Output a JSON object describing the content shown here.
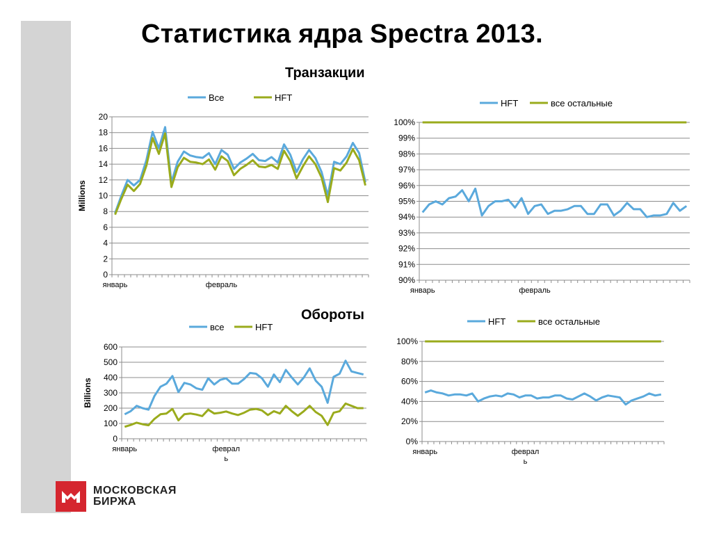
{
  "slide_title": "Статистика ядра Spectra 2013.",
  "section_transactions": "Транзакции",
  "section_turnover": "Обороты",
  "logo": {
    "line1": "МОСКОВСКАЯ",
    "line2": "БИРЖА",
    "brand_color": "#d5262f"
  },
  "colors": {
    "blue": "#5aa9dc",
    "green": "#9aab1c"
  },
  "chart_data": [
    {
      "id": "tx_abs",
      "type": "line",
      "title": "",
      "xlabel": "",
      "ylabel": "Millions",
      "ylim": [
        0,
        20
      ],
      "yticks": [
        "0",
        "2",
        "4",
        "6",
        "8",
        "10",
        "12",
        "14",
        "16",
        "18",
        "20"
      ],
      "x_labels": [
        {
          "label": "январь",
          "index": 0
        },
        {
          "label": "февраль",
          "index": 17
        }
      ],
      "legend": "top",
      "series": [
        {
          "name": "Все",
          "color": "#5aa9dc",
          "values": [
            7.8,
            10.0,
            12.0,
            11.3,
            12.0,
            14.5,
            18.1,
            16.0,
            18.7,
            11.7,
            14.3,
            15.6,
            15.1,
            14.9,
            14.8,
            15.4,
            14.0,
            15.8,
            15.2,
            13.4,
            14.2,
            14.7,
            15.3,
            14.5,
            14.4,
            14.9,
            14.2,
            16.5,
            15.2,
            13.0,
            14.6,
            15.8,
            14.8,
            13.0,
            10.0,
            14.3,
            14.0,
            15.0,
            16.7,
            15.4,
            11.7
          ]
        },
        {
          "name": "HFT",
          "color": "#9aab1c",
          "values": [
            7.6,
            9.6,
            11.4,
            10.6,
            11.5,
            13.8,
            17.3,
            15.3,
            17.9,
            11.1,
            13.6,
            14.8,
            14.3,
            14.2,
            14.0,
            14.6,
            13.3,
            15.0,
            14.4,
            12.6,
            13.4,
            13.9,
            14.5,
            13.7,
            13.6,
            13.9,
            13.4,
            15.7,
            14.4,
            12.2,
            13.7,
            15.0,
            14.0,
            12.3,
            9.2,
            13.5,
            13.2,
            14.2,
            15.9,
            14.5,
            11.3
          ]
        }
      ]
    },
    {
      "id": "tx_pct",
      "type": "line",
      "title": "",
      "ylim": [
        0.9,
        1.0
      ],
      "yticks": [
        "90%",
        "91%",
        "92%",
        "93%",
        "94%",
        "95%",
        "96%",
        "97%",
        "98%",
        "99%",
        "100%"
      ],
      "x_labels": [
        {
          "label": "январь",
          "index": 0
        },
        {
          "label": "февраль",
          "index": 17
        }
      ],
      "legend": "top",
      "series": [
        {
          "name": "HFT",
          "color": "#5aa9dc",
          "values": [
            0.943,
            0.948,
            0.95,
            0.948,
            0.952,
            0.953,
            0.957,
            0.95,
            0.958,
            0.941,
            0.947,
            0.95,
            0.95,
            0.951,
            0.946,
            0.952,
            0.942,
            0.947,
            0.948,
            0.942,
            0.944,
            0.944,
            0.945,
            0.947,
            0.947,
            0.942,
            0.942,
            0.948,
            0.948,
            0.941,
            0.944,
            0.949,
            0.945,
            0.945,
            0.94,
            0.941,
            0.941,
            0.942,
            0.949,
            0.944,
            0.947
          ]
        },
        {
          "name": "все остальные",
          "color": "#9aab1c",
          "values": [
            1,
            1,
            1,
            1,
            1,
            1,
            1,
            1,
            1,
            1,
            1,
            1,
            1,
            1,
            1,
            1,
            1,
            1,
            1,
            1,
            1,
            1,
            1,
            1,
            1,
            1,
            1,
            1,
            1,
            1,
            1,
            1,
            1,
            1,
            1,
            1,
            1,
            1,
            1,
            1,
            1
          ]
        }
      ]
    },
    {
      "id": "to_abs",
      "type": "line",
      "title": "",
      "ylabel": "Billions",
      "ylim": [
        0,
        600
      ],
      "yticks": [
        "0",
        "100",
        "200",
        "300",
        "400",
        "500",
        "600"
      ],
      "x_labels": [
        {
          "label": "январь",
          "index": 0
        },
        {
          "label": "феврал\nь",
          "index": 17
        }
      ],
      "legend": "top",
      "series": [
        {
          "name": "все",
          "color": "#5aa9dc",
          "values": [
            160,
            180,
            215,
            200,
            190,
            280,
            340,
            360,
            410,
            305,
            365,
            355,
            330,
            320,
            395,
            355,
            385,
            395,
            360,
            360,
            390,
            430,
            425,
            395,
            340,
            420,
            370,
            450,
            400,
            355,
            400,
            460,
            380,
            340,
            235,
            405,
            425,
            510,
            440,
            430,
            420
          ]
        },
        {
          "name": "HFT",
          "color": "#9aab1c",
          "values": [
            78,
            90,
            105,
            95,
            88,
            130,
            160,
            165,
            195,
            120,
            160,
            165,
            158,
            148,
            190,
            165,
            170,
            178,
            165,
            155,
            170,
            190,
            195,
            185,
            155,
            180,
            165,
            215,
            180,
            150,
            180,
            215,
            175,
            150,
            90,
            170,
            180,
            230,
            215,
            200,
            200
          ]
        }
      ]
    },
    {
      "id": "to_pct",
      "type": "line",
      "title": "",
      "ylim": [
        0,
        1.0
      ],
      "yticks": [
        "0%",
        "20%",
        "40%",
        "60%",
        "80%",
        "100%"
      ],
      "x_labels": [
        {
          "label": "январь",
          "index": 0
        },
        {
          "label": "феврал\nь",
          "index": 17
        }
      ],
      "legend": "top",
      "series": [
        {
          "name": "HFT",
          "color": "#5aa9dc",
          "values": [
            0.49,
            0.51,
            0.49,
            0.48,
            0.46,
            0.47,
            0.47,
            0.46,
            0.48,
            0.4,
            0.43,
            0.45,
            0.46,
            0.45,
            0.48,
            0.47,
            0.44,
            0.46,
            0.46,
            0.43,
            0.44,
            0.44,
            0.46,
            0.46,
            0.43,
            0.42,
            0.45,
            0.48,
            0.45,
            0.41,
            0.44,
            0.46,
            0.45,
            0.44,
            0.37,
            0.41,
            0.43,
            0.45,
            0.48,
            0.46,
            0.47
          ]
        },
        {
          "name": "все остальные",
          "color": "#9aab1c",
          "values": [
            1,
            1,
            1,
            1,
            1,
            1,
            1,
            1,
            1,
            1,
            1,
            1,
            1,
            1,
            1,
            1,
            1,
            1,
            1,
            1,
            1,
            1,
            1,
            1,
            1,
            1,
            1,
            1,
            1,
            1,
            1,
            1,
            1,
            1,
            1,
            1,
            1,
            1,
            1,
            1,
            1
          ]
        }
      ]
    }
  ]
}
